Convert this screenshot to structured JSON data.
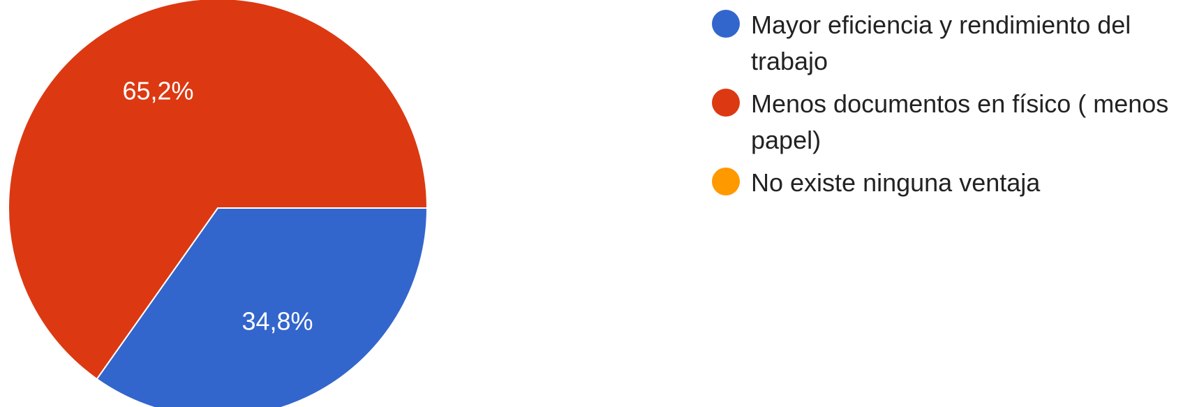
{
  "chart_data": {
    "type": "pie",
    "title": "",
    "start_angle_deg": 90,
    "direction": "clockwise",
    "slices": [
      {
        "label": "Mayor eficiencia y rendimiento del trabajo",
        "value": 34.8,
        "value_label": "34,8%",
        "color": "#3366cc"
      },
      {
        "label": "Menos documentos en físico ( menos papel)",
        "value": 65.2,
        "value_label": "65,2%",
        "color": "#dc3912"
      },
      {
        "label": "No existe ninguna ventaja",
        "value": 0,
        "value_label": "",
        "color": "#ff9900"
      }
    ],
    "legend": {
      "position": "right",
      "entries": [
        {
          "label": "Mayor eficiencia y rendimiento del trabajo",
          "color": "#3366cc"
        },
        {
          "label": "Menos documentos en físico ( menos papel)",
          "color": "#dc3912"
        },
        {
          "label": "No existe ninguna ventaja",
          "color": "#ff9900"
        }
      ]
    }
  }
}
